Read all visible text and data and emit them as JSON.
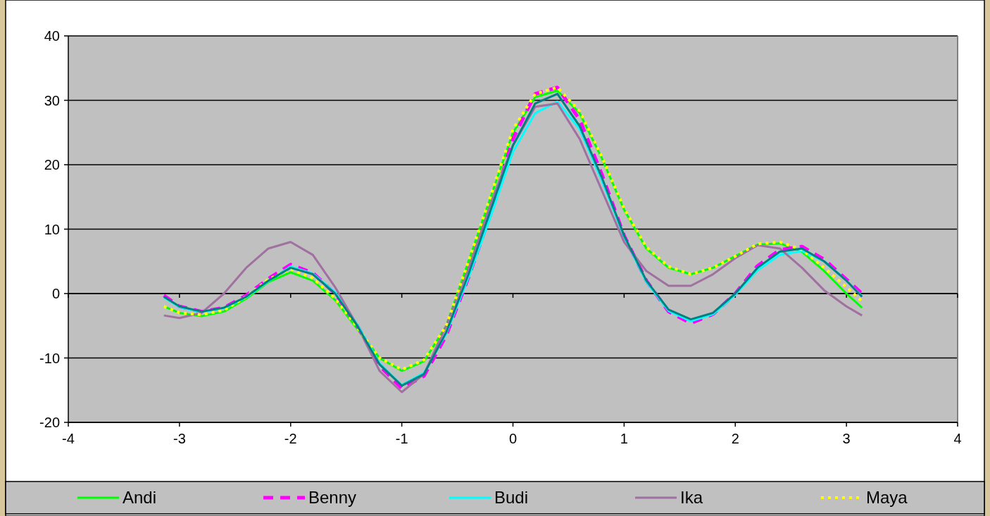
{
  "chart_data": {
    "type": "line",
    "x": [
      -3.14,
      -3,
      -2.8,
      -2.6,
      -2.4,
      -2.2,
      -2,
      -1.8,
      -1.6,
      -1.4,
      -1.2,
      -1,
      -0.8,
      -0.6,
      -0.4,
      -0.2,
      0,
      0.2,
      0.4,
      0.6,
      0.8,
      1,
      1.2,
      1.4,
      1.6,
      1.8,
      2,
      2.2,
      2.4,
      2.6,
      2.8,
      3,
      3.14
    ],
    "series": [
      {
        "name": "Andi",
        "color": "#00ff00",
        "line_style": "solid",
        "values": [
          -2,
          -3,
          -3.5,
          -2.8,
          -0.8,
          1.8,
          3.3,
          2,
          -1,
          -5.5,
          -10,
          -12,
          -10.5,
          -5,
          5,
          15,
          25,
          30.5,
          31.5,
          28,
          21,
          13,
          7,
          4,
          3,
          4,
          5.8,
          7.6,
          7.8,
          6.5,
          3.5,
          0,
          -2.2
        ]
      },
      {
        "name": "Benny",
        "color": "#ff00ff",
        "line_style": "dashed",
        "values": [
          -0.3,
          -2,
          -2.8,
          -2.2,
          -0.3,
          2.3,
          4.5,
          3.2,
          0,
          -5,
          -11.2,
          -14.7,
          -12.8,
          -6.5,
          2.5,
          12.5,
          24,
          31,
          32,
          27,
          18.5,
          9,
          2,
          -2.8,
          -4.6,
          -3.2,
          0,
          4.3,
          6.8,
          7.3,
          5.3,
          2.2,
          0
        ]
      },
      {
        "name": "Budi",
        "color": "#00ffff",
        "line_style": "solid",
        "values": [
          -0.6,
          -2.1,
          -2.9,
          -2.3,
          -0.6,
          1.9,
          4.2,
          3.1,
          0.2,
          -4.8,
          -10.8,
          -14.2,
          -12.3,
          -6.2,
          2.5,
          12,
          22,
          28,
          29.8,
          25.5,
          17.5,
          8.8,
          1.8,
          -2.7,
          -4.3,
          -3.2,
          -0.2,
          3.6,
          6,
          6.6,
          5,
          2,
          -0.4
        ]
      },
      {
        "name": "Ika",
        "color": "#a070a0",
        "line_style": "solid",
        "values": [
          -3.4,
          -3.8,
          -3,
          0,
          4,
          7,
          8,
          6,
          1,
          -5,
          -12,
          -15.3,
          -12.5,
          -5,
          4,
          14,
          23,
          29,
          29.5,
          24,
          16,
          8,
          3.5,
          1.2,
          1.2,
          3,
          5.5,
          7.5,
          7,
          4,
          0.5,
          -2,
          -3.4
        ]
      },
      {
        "name": "Maya",
        "color": "#ffff00",
        "line_style": "dotted",
        "values": [
          -2,
          -3,
          -3.3,
          -2.6,
          -0.5,
          2.2,
          3.8,
          2.4,
          -0.8,
          -5.3,
          -10,
          -11.8,
          -10.3,
          -5,
          5,
          15.2,
          25.5,
          31,
          32,
          28.3,
          21.2,
          13.2,
          7.2,
          4.2,
          3,
          4,
          5.8,
          7.7,
          8,
          6.8,
          4,
          1,
          -1.2
        ]
      },
      {
        "color": "#008080",
        "line_style": "solid",
        "values": [
          -0.5,
          -2,
          -2.8,
          -2.2,
          -0.5,
          2,
          4,
          3,
          0,
          -5,
          -11,
          -14.3,
          -12.5,
          -6,
          3,
          13,
          23,
          29.5,
          31,
          26,
          18,
          9,
          2,
          -2.5,
          -4,
          -3,
          0,
          4,
          6.5,
          7,
          5,
          2,
          -0.5
        ]
      }
    ],
    "xlim": [
      -4,
      4
    ],
    "xticks": [
      -4,
      -3,
      -2,
      -1,
      0,
      1,
      2,
      3,
      4
    ],
    "ylim": [
      -20,
      40
    ],
    "yticks": [
      -20,
      -10,
      0,
      10,
      20,
      30,
      40
    ],
    "grid": "y",
    "legend": "bottom"
  }
}
